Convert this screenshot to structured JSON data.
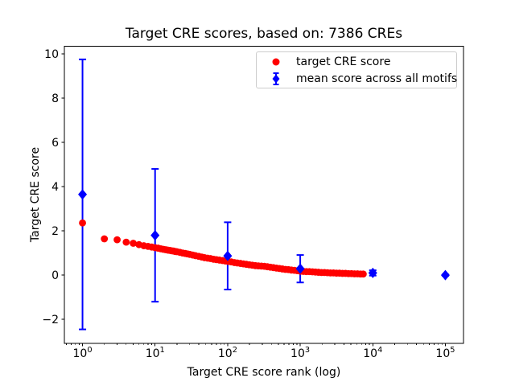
{
  "chart_data": {
    "type": "scatter",
    "title": "Target CRE scores, based on: 7386 CREs",
    "xlabel": "Target CRE score rank (log)",
    "ylabel": "Target CRE score",
    "x_scale": "log",
    "xlim_log": [
      -0.25,
      5.25
    ],
    "ylim": [
      -3.09,
      10.34
    ],
    "x_tick_exponents": [
      0,
      1,
      2,
      3,
      4,
      5
    ],
    "x_tick_base": "10",
    "y_ticks": [
      -2,
      0,
      2,
      4,
      6,
      8,
      10
    ],
    "y_tick_labels": [
      "−2",
      "0",
      "2",
      "4",
      "6",
      "8",
      "10"
    ],
    "grid": false,
    "legend_position": "upper right",
    "series": [
      {
        "name": "target CRE score",
        "marker": "circle",
        "color": "#ff0000",
        "points": [
          [
            1,
            2.36
          ],
          [
            2,
            1.64
          ],
          [
            3,
            1.6
          ],
          [
            4,
            1.49
          ],
          [
            5,
            1.44
          ],
          [
            6,
            1.38
          ],
          [
            7,
            1.33
          ],
          [
            8,
            1.3
          ],
          [
            9,
            1.27
          ],
          [
            10,
            1.24
          ],
          [
            11,
            1.22
          ],
          [
            12,
            1.19
          ],
          [
            13,
            1.17
          ],
          [
            14,
            1.15
          ],
          [
            15,
            1.13
          ],
          [
            16,
            1.12
          ],
          [
            17,
            1.1
          ],
          [
            18,
            1.09
          ],
          [
            19,
            1.07
          ],
          [
            20,
            1.06
          ],
          [
            22,
            1.03
          ],
          [
            24,
            1.0
          ],
          [
            26,
            0.98
          ],
          [
            28,
            0.96
          ],
          [
            30,
            0.94
          ],
          [
            33,
            0.91
          ],
          [
            36,
            0.88
          ],
          [
            40,
            0.85
          ],
          [
            44,
            0.82
          ],
          [
            48,
            0.79
          ],
          [
            53,
            0.77
          ],
          [
            58,
            0.75
          ],
          [
            64,
            0.72
          ],
          [
            70,
            0.7
          ],
          [
            77,
            0.68
          ],
          [
            85,
            0.66
          ],
          [
            93,
            0.64
          ],
          [
            102,
            0.62
          ],
          [
            112,
            0.6
          ],
          [
            124,
            0.57
          ],
          [
            136,
            0.55
          ],
          [
            150,
            0.53
          ],
          [
            165,
            0.51
          ],
          [
            181,
            0.49
          ],
          [
            199,
            0.47
          ],
          [
            219,
            0.45
          ],
          [
            241,
            0.43
          ],
          [
            265,
            0.42
          ],
          [
            292,
            0.41
          ],
          [
            321,
            0.4
          ],
          [
            353,
            0.38
          ],
          [
            388,
            0.36
          ],
          [
            427,
            0.34
          ],
          [
            470,
            0.32
          ],
          [
            517,
            0.3
          ],
          [
            568,
            0.28
          ],
          [
            625,
            0.26
          ],
          [
            688,
            0.25
          ],
          [
            756,
            0.23
          ],
          [
            832,
            0.22
          ],
          [
            915,
            0.2
          ],
          [
            1007,
            0.18
          ],
          [
            1107,
            0.17
          ],
          [
            1218,
            0.16
          ],
          [
            1340,
            0.16
          ],
          [
            1474,
            0.15
          ],
          [
            1621,
            0.14
          ],
          [
            1783,
            0.13
          ],
          [
            1962,
            0.12
          ],
          [
            2158,
            0.12
          ],
          [
            2374,
            0.11
          ],
          [
            2611,
            0.1
          ],
          [
            2872,
            0.1
          ],
          [
            3159,
            0.09
          ],
          [
            3475,
            0.09
          ],
          [
            3823,
            0.08
          ],
          [
            4205,
            0.08
          ],
          [
            4626,
            0.07
          ],
          [
            5088,
            0.07
          ],
          [
            5597,
            0.06
          ],
          [
            6157,
            0.06
          ],
          [
            6772,
            0.05
          ],
          [
            7386,
            0.05
          ]
        ]
      },
      {
        "name": "mean score across all motifs",
        "marker": "diamond",
        "color": "#0000ff",
        "points": [
          [
            1,
            3.65,
            6.1
          ],
          [
            10,
            1.8,
            3.0
          ],
          [
            100,
            0.87,
            1.52
          ],
          [
            1000,
            0.29,
            0.62
          ],
          [
            10000,
            0.1,
            0.12
          ],
          [
            100000,
            0.0,
            0.03
          ]
        ]
      }
    ]
  }
}
